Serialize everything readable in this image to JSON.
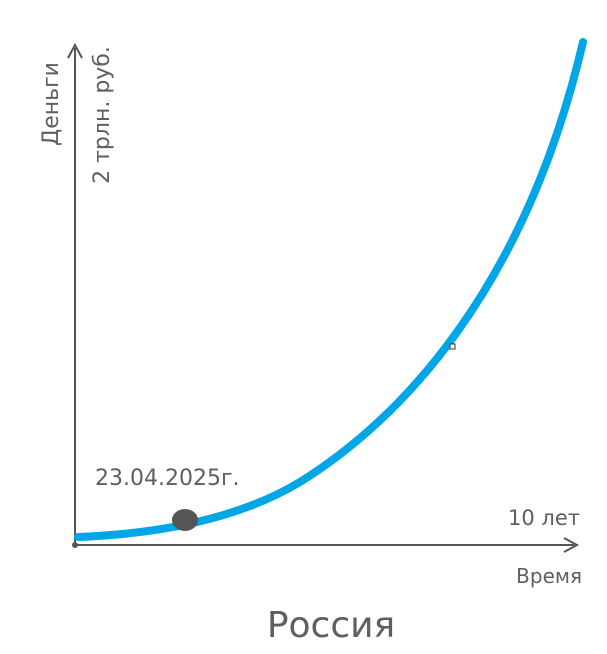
{
  "axes": {
    "y_label": "Деньги",
    "y_note": "2 трлн. руб.",
    "x_note": "10 лет",
    "x_label": "Время"
  },
  "point": {
    "label": "23.04.2025г."
  },
  "title": "Россия"
}
